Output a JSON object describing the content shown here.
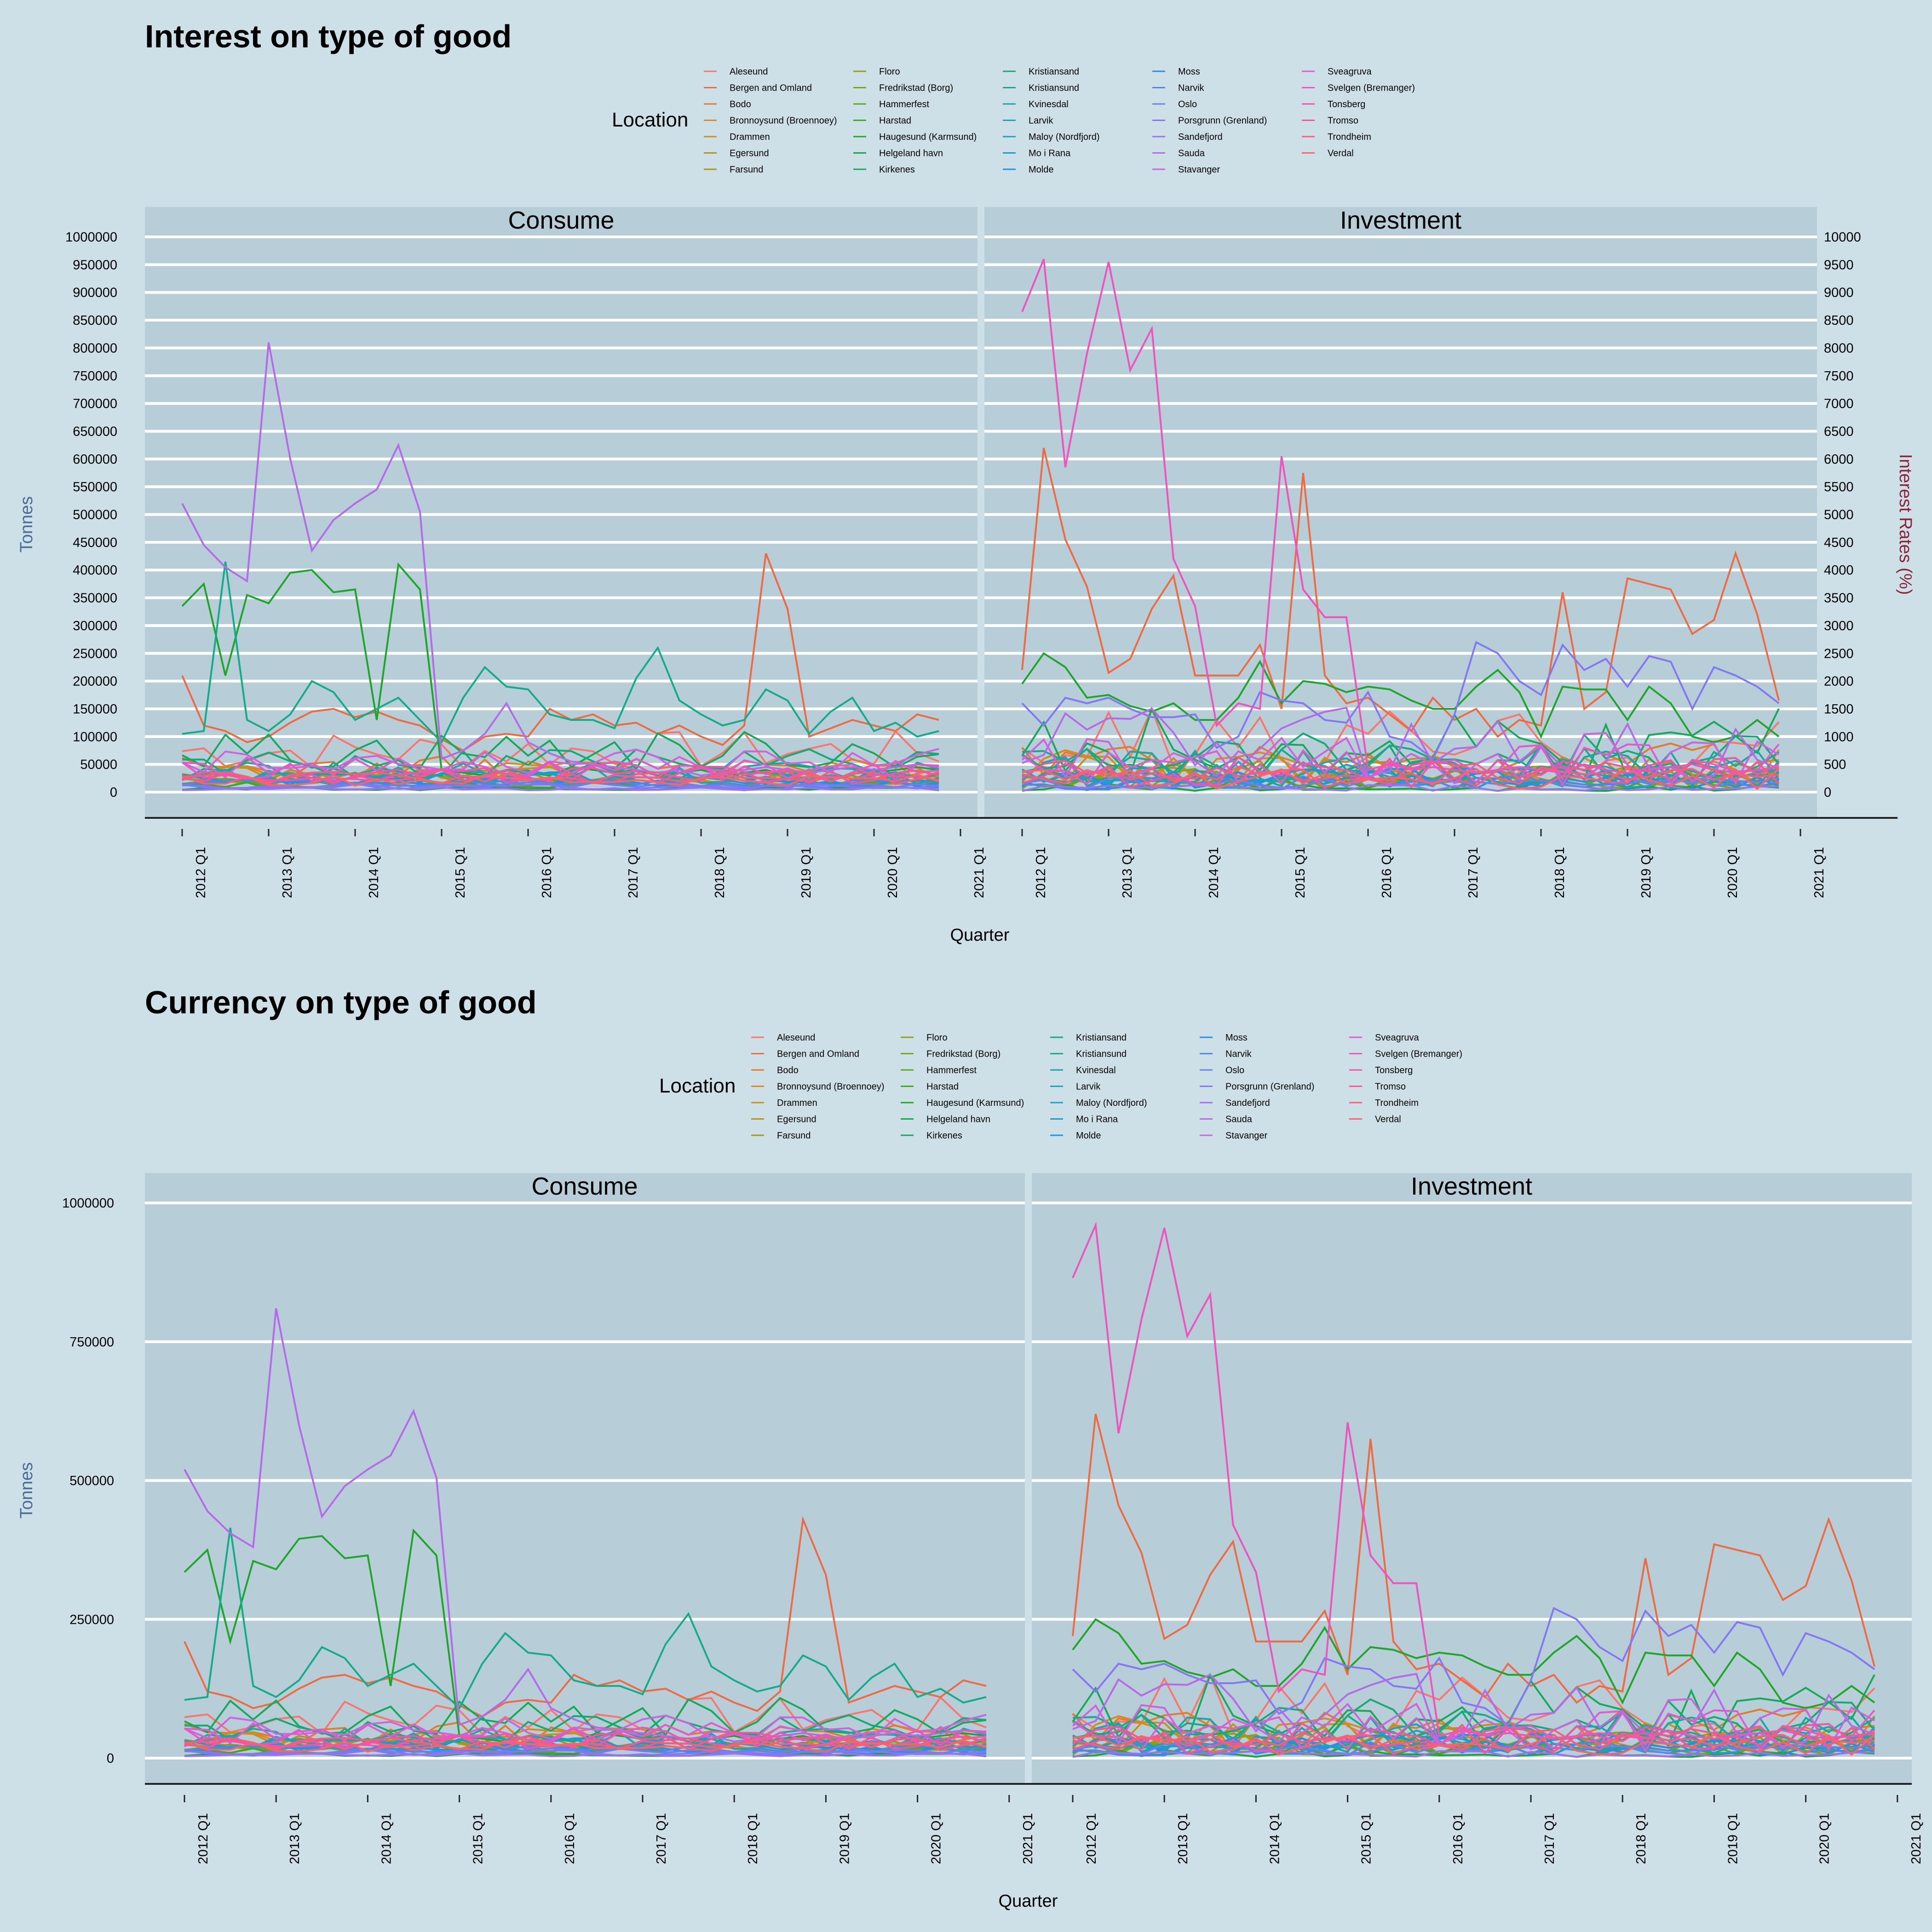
{
  "colors": {
    "background": "#cde0e7",
    "panel": "#b7ced8",
    "grid": "#ffffff",
    "left_axis_label": "#4a6b94",
    "right_axis_label": "#8b2335"
  },
  "locations": [
    {
      "name": "Aleseund",
      "color": "#f8766d"
    },
    {
      "name": "Bergen and Omland",
      "color": "#ee6b42"
    },
    {
      "name": "Bodo",
      "color": "#e67a26"
    },
    {
      "name": "Bronnoysund (Broennoey)",
      "color": "#d98a1e"
    },
    {
      "name": "Drammen",
      "color": "#c8901c"
    },
    {
      "name": "Egersund",
      "color": "#b39418"
    },
    {
      "name": "Farsund",
      "color": "#a39916"
    },
    {
      "name": "Floro",
      "color": "#8fa117"
    },
    {
      "name": "Fredrikstad (Borg)",
      "color": "#7aa71a"
    },
    {
      "name": "Hammerfest",
      "color": "#5fa71e"
    },
    {
      "name": "Harstad",
      "color": "#3fa721"
    },
    {
      "name": "Haugesund (Karmsund)",
      "color": "#1ea628"
    },
    {
      "name": "Helgeland havn",
      "color": "#15a83e"
    },
    {
      "name": "Kirkenes",
      "color": "#14aa5a"
    },
    {
      "name": "Kristiansand",
      "color": "#13ab73"
    },
    {
      "name": "Kristiansund",
      "color": "#14ab8a"
    },
    {
      "name": "Kvinesdal",
      "color": "#16a99f"
    },
    {
      "name": "Larvik",
      "color": "#18a6b2"
    },
    {
      "name": "Maloy (Nordfjord)",
      "color": "#19a2c4"
    },
    {
      "name": "Mo i Rana",
      "color": "#199cd4"
    },
    {
      "name": "Molde",
      "color": "#1a95e1"
    },
    {
      "name": "Moss",
      "color": "#2b8de9"
    },
    {
      "name": "Narvik",
      "color": "#4c86ef"
    },
    {
      "name": "Oslo",
      "color": "#6a7ff2"
    },
    {
      "name": "Porsgrunn (Grenland)",
      "color": "#8478f2"
    },
    {
      "name": "Sandefjord",
      "color": "#9b71ee"
    },
    {
      "name": "Sauda",
      "color": "#b56ae8"
    },
    {
      "name": "Stavanger",
      "color": "#cc63df"
    },
    {
      "name": "Sveagruva",
      "color": "#df5bd0"
    },
    {
      "name": "Svelgen (Bremanger)",
      "color": "#ec55bd"
    },
    {
      "name": "Tonsberg",
      "color": "#f453a6"
    },
    {
      "name": "Tromso",
      "color": "#f7568f"
    },
    {
      "name": "Trondheim",
      "color": "#f95d7a"
    },
    {
      "name": "Verdal",
      "color": "#fa6468"
    }
  ],
  "x_ticks": [
    "2012 Q1",
    "2013 Q1",
    "2014 Q1",
    "2015 Q1",
    "2016 Q1",
    "2017 Q1",
    "2018 Q1",
    "2019 Q1",
    "2020 Q1",
    "2021 Q1"
  ],
  "chart_data": [
    {
      "type": "line",
      "title": "Interest on type of good",
      "legend_title": "Location",
      "legend_position": "top",
      "xlabel": "Quarter",
      "ylabel": "Tonnes",
      "y2label": "Interest Rates (%)",
      "ylim": [
        0,
        1000000
      ],
      "y2lim": [
        0,
        10000
      ],
      "y_ticks": [
        "0",
        "50000",
        "100000",
        "150000",
        "200000",
        "250000",
        "300000",
        "350000",
        "400000",
        "450000",
        "500000",
        "550000",
        "600000",
        "650000",
        "700000",
        "750000",
        "800000",
        "850000",
        "900000",
        "950000",
        "1000000"
      ],
      "y2_ticks": [
        "0",
        "500",
        "1000",
        "1500",
        "2000",
        "2500",
        "3000",
        "3500",
        "4000",
        "4500",
        "5000",
        "5500",
        "6000",
        "6500",
        "7000",
        "7500",
        "8000",
        "8500",
        "9000",
        "9500",
        "10000"
      ],
      "facets": [
        "Consume",
        "Investment"
      ],
      "grid": true,
      "x_start": "2012 Q1",
      "x_end": "2020 Q4",
      "highlighted_series": [
        {
          "facet": "Consume",
          "location": "Sauda",
          "values": [
            520000,
            445000,
            405000,
            380000,
            810000,
            600000,
            435000,
            490000,
            520000,
            545000,
            625000,
            505000,
            60000,
            75000,
            105000,
            160000,
            90000,
            70000,
            55000,
            50000,
            45000,
            40000,
            35000,
            40000,
            30000,
            35000,
            40000,
            45000,
            40000,
            35000,
            40000,
            45000,
            40000,
            45000,
            50000,
            45000
          ]
        },
        {
          "facet": "Consume",
          "location": "Haugesund (Karmsund)",
          "values": [
            335000,
            375000,
            210000,
            355000,
            340000,
            395000,
            400000,
            360000,
            365000,
            130000,
            410000,
            365000,
            40000,
            35000,
            30000,
            40000,
            35000,
            30000,
            45000,
            40000,
            35000,
            40000,
            30000,
            35000,
            40000,
            30000,
            35000,
            40000,
            30000,
            35000,
            40000,
            45000,
            35000,
            40000,
            45000,
            40000
          ]
        },
        {
          "facet": "Consume",
          "location": "Kristiansund",
          "values": [
            105000,
            110000,
            415000,
            130000,
            110000,
            140000,
            200000,
            180000,
            130000,
            150000,
            170000,
            130000,
            90000,
            170000,
            225000,
            190000,
            185000,
            140000,
            130000,
            130000,
            115000,
            205000,
            260000,
            165000,
            140000,
            120000,
            130000,
            185000,
            165000,
            105000,
            145000,
            170000,
            110000,
            125000,
            100000,
            110000
          ]
        },
        {
          "facet": "Consume",
          "location": "Bergen and Omland",
          "values": [
            210000,
            120000,
            110000,
            90000,
            100000,
            125000,
            145000,
            150000,
            135000,
            145000,
            130000,
            120000,
            95000,
            75000,
            100000,
            105000,
            100000,
            150000,
            130000,
            140000,
            120000,
            125000,
            105000,
            120000,
            100000,
            85000,
            120000,
            430000,
            330000,
            100000,
            115000,
            130000,
            120000,
            110000,
            140000,
            130000
          ]
        },
        {
          "facet": "Investment",
          "location": "Svelgen (Bremanger)",
          "values": [
            865000,
            960000,
            585000,
            790000,
            955000,
            760000,
            835000,
            420000,
            335000,
            120000,
            160000,
            150000,
            605000,
            365000,
            315000,
            315000,
            40000,
            50000,
            40000,
            45000,
            40000,
            35000,
            40000,
            45000,
            40000,
            35000,
            50000,
            40000,
            35000,
            40000,
            45000,
            50000,
            40000,
            35000,
            40000,
            45000
          ]
        },
        {
          "facet": "Investment",
          "location": "Bergen and Omland",
          "values": [
            220000,
            620000,
            455000,
            370000,
            215000,
            240000,
            330000,
            390000,
            210000,
            210000,
            210000,
            265000,
            150000,
            575000,
            210000,
            160000,
            170000,
            140000,
            110000,
            170000,
            130000,
            150000,
            100000,
            130000,
            120000,
            360000,
            150000,
            180000,
            385000,
            375000,
            365000,
            285000,
            310000,
            430000,
            320000,
            165000
          ]
        },
        {
          "facet": "Investment",
          "location": "Haugesund (Karmsund)",
          "values": [
            195000,
            250000,
            225000,
            170000,
            175000,
            155000,
            145000,
            160000,
            130000,
            130000,
            170000,
            235000,
            160000,
            200000,
            195000,
            180000,
            190000,
            185000,
            165000,
            150000,
            150000,
            190000,
            220000,
            180000,
            100000,
            190000,
            185000,
            185000,
            130000,
            190000,
            160000,
            100000,
            90000,
            100000,
            130000,
            100000
          ]
        },
        {
          "facet": "Investment",
          "location": "Porsgrunn (Grenland)",
          "values": [
            160000,
            120000,
            170000,
            160000,
            170000,
            150000,
            135000,
            135000,
            140000,
            80000,
            100000,
            180000,
            165000,
            160000,
            130000,
            125000,
            180000,
            100000,
            90000,
            60000,
            140000,
            270000,
            250000,
            200000,
            175000,
            265000,
            220000,
            240000,
            190000,
            245000,
            235000,
            150000,
            225000,
            210000,
            190000,
            160000
          ]
        }
      ]
    },
    {
      "type": "line",
      "title": "Currency on type of good",
      "legend_title": "Location",
      "legend_position": "top",
      "xlabel": "Quarter",
      "ylabel": "Tonnes",
      "ylim": [
        0,
        1000000
      ],
      "y_ticks": [
        "0",
        "250000",
        "500000",
        "750000",
        "1000000"
      ],
      "facets": [
        "Consume",
        "Investment"
      ],
      "grid": true,
      "x_start": "2012 Q1",
      "x_end": "2020 Q4",
      "note_same_series_as_first_chart": true
    }
  ]
}
